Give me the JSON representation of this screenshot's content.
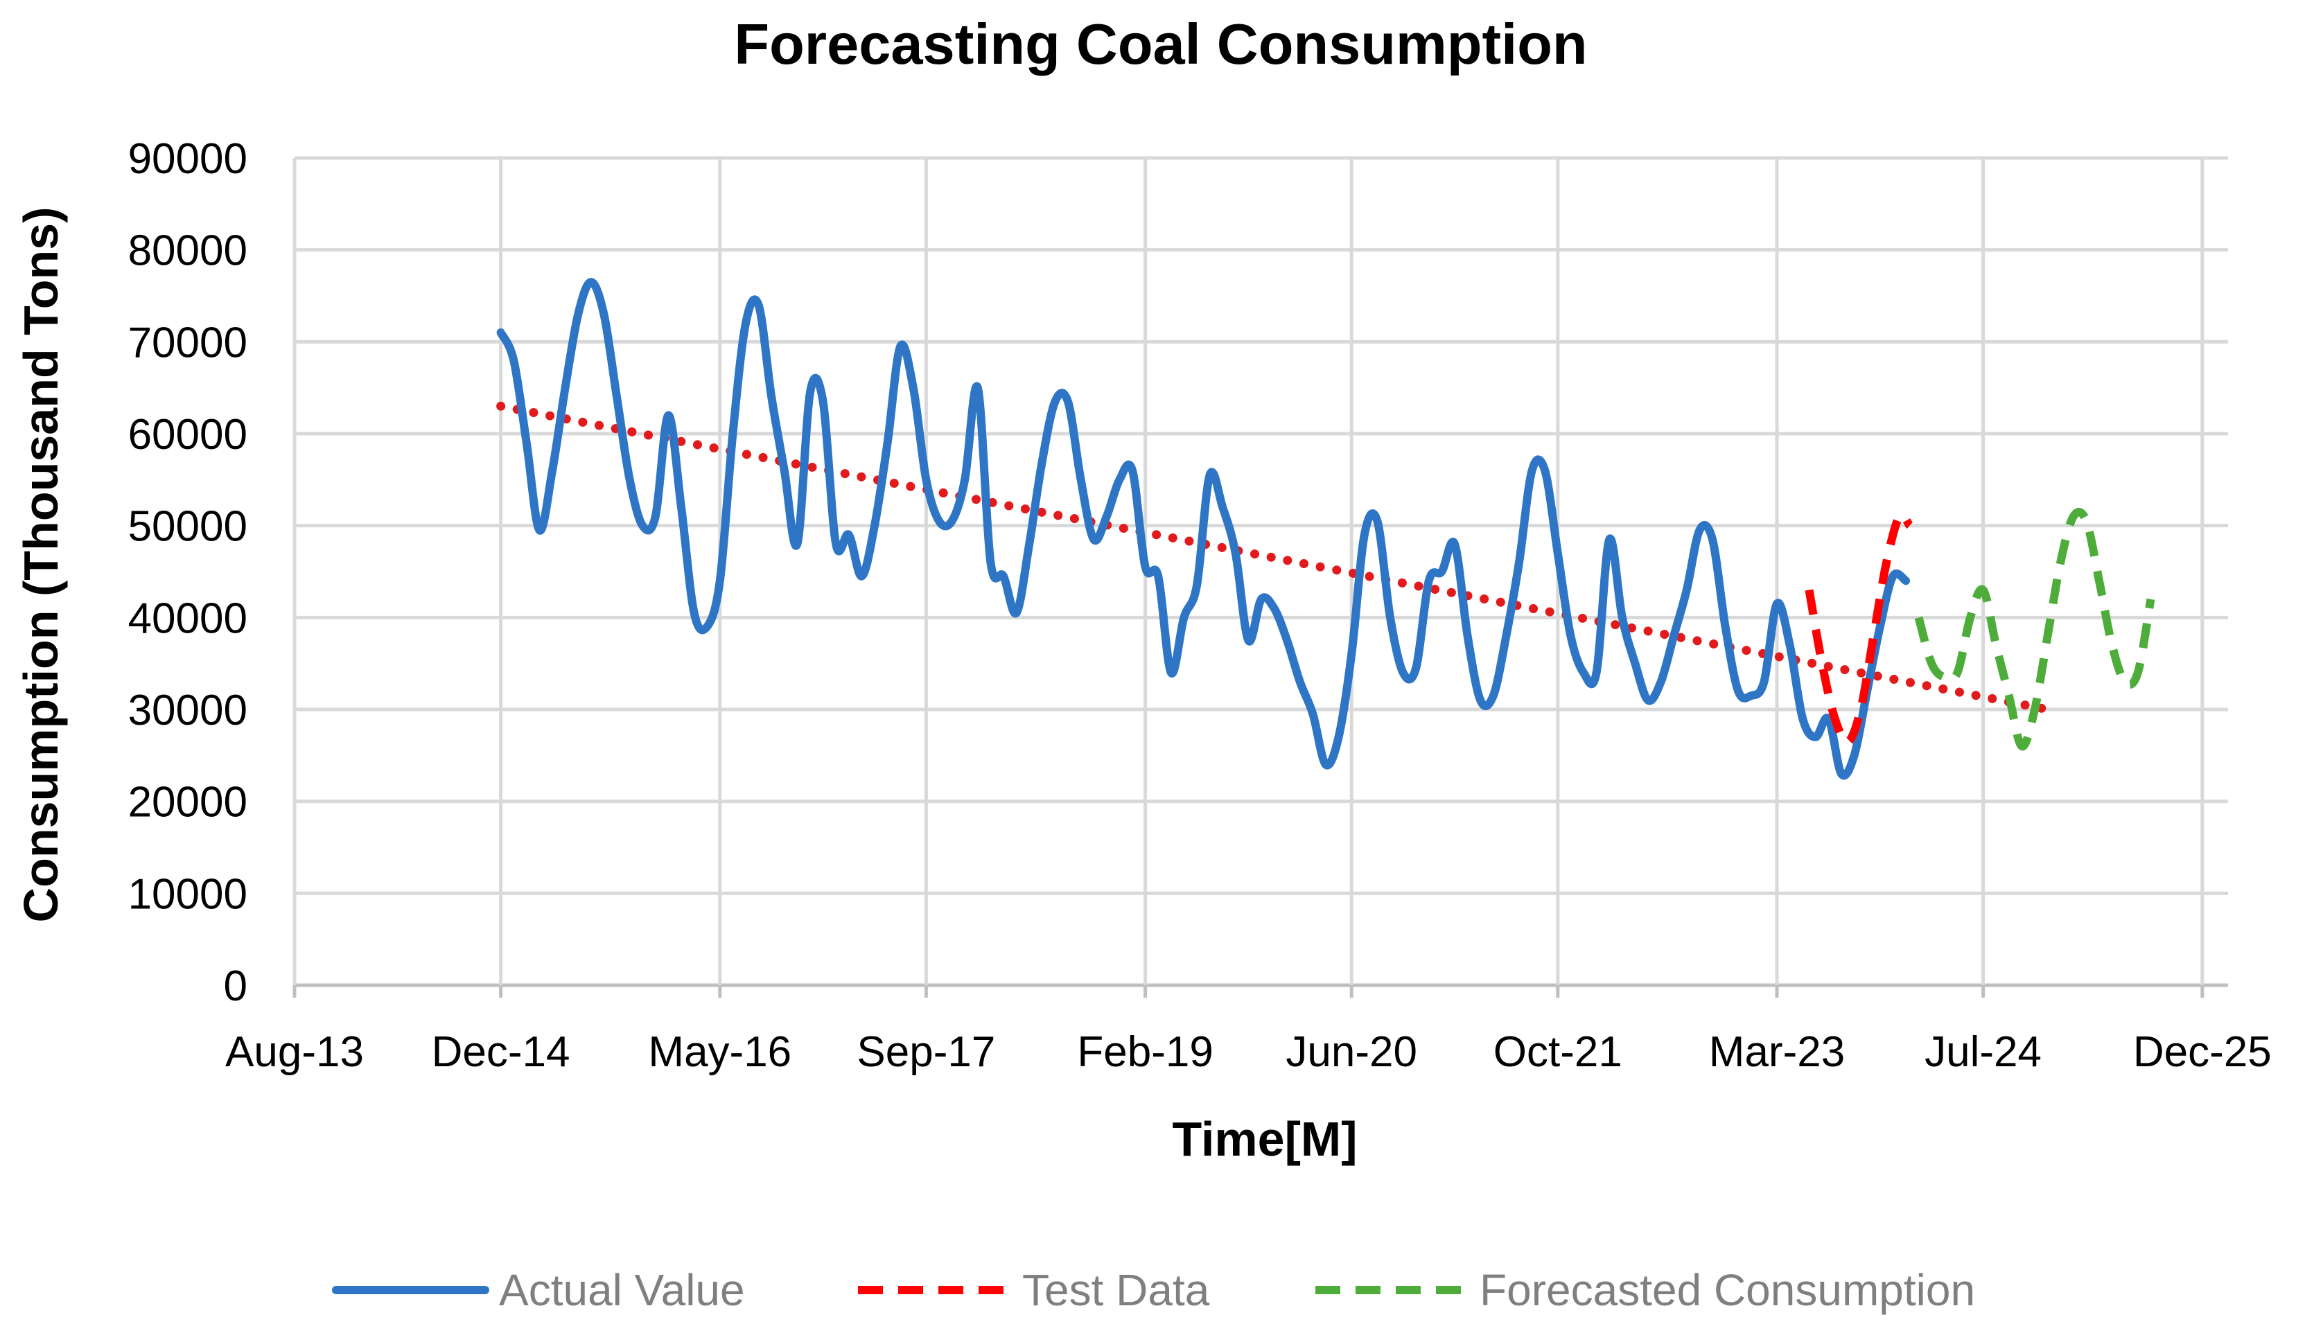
{
  "chart_data": {
    "type": "line",
    "title": "Forecasting Coal Consumption",
    "xlabel": "Time[M]",
    "ylabel": "Consumption (Thousand Tons)",
    "ylim": [
      0,
      90000
    ],
    "yticks": [
      0,
      10000,
      20000,
      30000,
      40000,
      50000,
      60000,
      70000,
      80000,
      90000
    ],
    "xlim": [
      0,
      150
    ],
    "xticks": [
      {
        "label": "Aug-13",
        "value": 0
      },
      {
        "label": "Dec-14",
        "value": 16
      },
      {
        "label": "May-16",
        "value": 33
      },
      {
        "label": "Sep-17",
        "value": 49
      },
      {
        "label": "Feb-19",
        "value": 66
      },
      {
        "label": "Jun-20",
        "value": 82
      },
      {
        "label": "Oct-21",
        "value": 98
      },
      {
        "label": "Mar-23",
        "value": 115
      },
      {
        "label": "Jul-24",
        "value": 131
      },
      {
        "label": "Dec-25",
        "value": 148
      }
    ],
    "grid": true,
    "legend_position": "bottom",
    "series": [
      {
        "name": "Actual Value",
        "color": "#2e75c6",
        "dash": "solid",
        "points": [
          [
            16,
            71000
          ],
          [
            17,
            68000
          ],
          [
            18,
            59000
          ],
          [
            19,
            49500
          ],
          [
            20,
            56000
          ],
          [
            21,
            65000
          ],
          [
            22,
            73000
          ],
          [
            23,
            76500
          ],
          [
            24,
            73000
          ],
          [
            25,
            64000
          ],
          [
            26,
            55000
          ],
          [
            27,
            50000
          ],
          [
            28,
            51000
          ],
          [
            29,
            62000
          ],
          [
            30,
            52000
          ],
          [
            31,
            40500
          ],
          [
            32,
            39000
          ],
          [
            33,
            44000
          ],
          [
            34,
            60000
          ],
          [
            35,
            72000
          ],
          [
            36,
            74000
          ],
          [
            37,
            64000
          ],
          [
            38,
            56000
          ],
          [
            39,
            48000
          ],
          [
            40,
            64500
          ],
          [
            41,
            63500
          ],
          [
            42,
            48000
          ],
          [
            43,
            49000
          ],
          [
            44,
            44500
          ],
          [
            45,
            50000
          ],
          [
            46,
            59000
          ],
          [
            47,
            69500
          ],
          [
            48,
            65000
          ],
          [
            49,
            55000
          ],
          [
            50,
            50500
          ],
          [
            51,
            50500
          ],
          [
            52,
            55000
          ],
          [
            53,
            65000
          ],
          [
            54,
            46000
          ],
          [
            55,
            44500
          ],
          [
            56,
            40500
          ],
          [
            57,
            48000
          ],
          [
            58,
            57000
          ],
          [
            59,
            63500
          ],
          [
            60,
            63500
          ],
          [
            61,
            55000
          ],
          [
            62,
            48500
          ],
          [
            63,
            51000
          ],
          [
            64,
            55000
          ],
          [
            65,
            56000
          ],
          [
            66,
            45500
          ],
          [
            67,
            44500
          ],
          [
            68,
            34000
          ],
          [
            69,
            40000
          ],
          [
            70,
            43500
          ],
          [
            71,
            55500
          ],
          [
            72,
            52000
          ],
          [
            73,
            47000
          ],
          [
            74,
            37500
          ],
          [
            75,
            42000
          ],
          [
            76,
            41000
          ],
          [
            77,
            37500
          ],
          [
            78,
            33000
          ],
          [
            79,
            29500
          ],
          [
            80,
            24000
          ],
          [
            81,
            27000
          ],
          [
            82,
            36000
          ],
          [
            83,
            49000
          ],
          [
            84,
            50500
          ],
          [
            85,
            40000
          ],
          [
            86,
            34000
          ],
          [
            87,
            34500
          ],
          [
            88,
            44000
          ],
          [
            89,
            45000
          ],
          [
            90,
            48000
          ],
          [
            91,
            38000
          ],
          [
            92,
            31000
          ],
          [
            93,
            31500
          ],
          [
            94,
            38000
          ],
          [
            95,
            46000
          ],
          [
            96,
            56000
          ],
          [
            97,
            56000
          ],
          [
            98,
            47000
          ],
          [
            99,
            38000
          ],
          [
            100,
            34000
          ],
          [
            101,
            34000
          ],
          [
            102,
            48500
          ],
          [
            103,
            40000
          ],
          [
            104,
            35000
          ],
          [
            105,
            31000
          ],
          [
            106,
            33000
          ],
          [
            107,
            38000
          ],
          [
            108,
            43000
          ],
          [
            109,
            49500
          ],
          [
            110,
            48500
          ],
          [
            111,
            39000
          ],
          [
            112,
            32000
          ],
          [
            113,
            31500
          ],
          [
            114,
            33000
          ],
          [
            115,
            41500
          ],
          [
            116,
            37000
          ],
          [
            117,
            29000
          ],
          [
            118,
            27000
          ],
          [
            119,
            29000
          ],
          [
            120,
            23000
          ],
          [
            121,
            25000
          ],
          [
            122,
            32000
          ],
          [
            123,
            39000
          ],
          [
            124,
            44500
          ],
          [
            125,
            44000
          ]
        ]
      },
      {
        "name": "Test Data",
        "color": "#ff0000",
        "dash": "dashed",
        "points": [
          [
            117.5,
            43000
          ],
          [
            118.5,
            35000
          ],
          [
            119.5,
            29000
          ],
          [
            120.5,
            26500
          ],
          [
            121.5,
            30000
          ],
          [
            122.5,
            38000
          ],
          [
            123.5,
            46000
          ],
          [
            124.5,
            51000
          ],
          [
            125.3,
            50000
          ]
        ]
      },
      {
        "name": "Forecasted Consumption",
        "color": "#4eac3a",
        "dash": "dashed",
        "points": [
          [
            126,
            40000
          ],
          [
            127,
            35000
          ],
          [
            128,
            33500
          ],
          [
            129,
            34000
          ],
          [
            130,
            40000
          ],
          [
            131,
            43000
          ],
          [
            132,
            37000
          ],
          [
            133,
            31500
          ],
          [
            134,
            26000
          ],
          [
            135,
            30000
          ],
          [
            136,
            38000
          ],
          [
            137,
            46000
          ],
          [
            138,
            51000
          ],
          [
            139,
            50500
          ],
          [
            140,
            44000
          ],
          [
            141,
            37000
          ],
          [
            142,
            33000
          ],
          [
            143,
            34000
          ],
          [
            144,
            42000
          ]
        ]
      },
      {
        "name": "Linear Trend",
        "color": "#e31a1c",
        "dash": "dotted",
        "legend": false,
        "points": [
          [
            16,
            63000
          ],
          [
            136,
            30000
          ]
        ]
      }
    ]
  }
}
